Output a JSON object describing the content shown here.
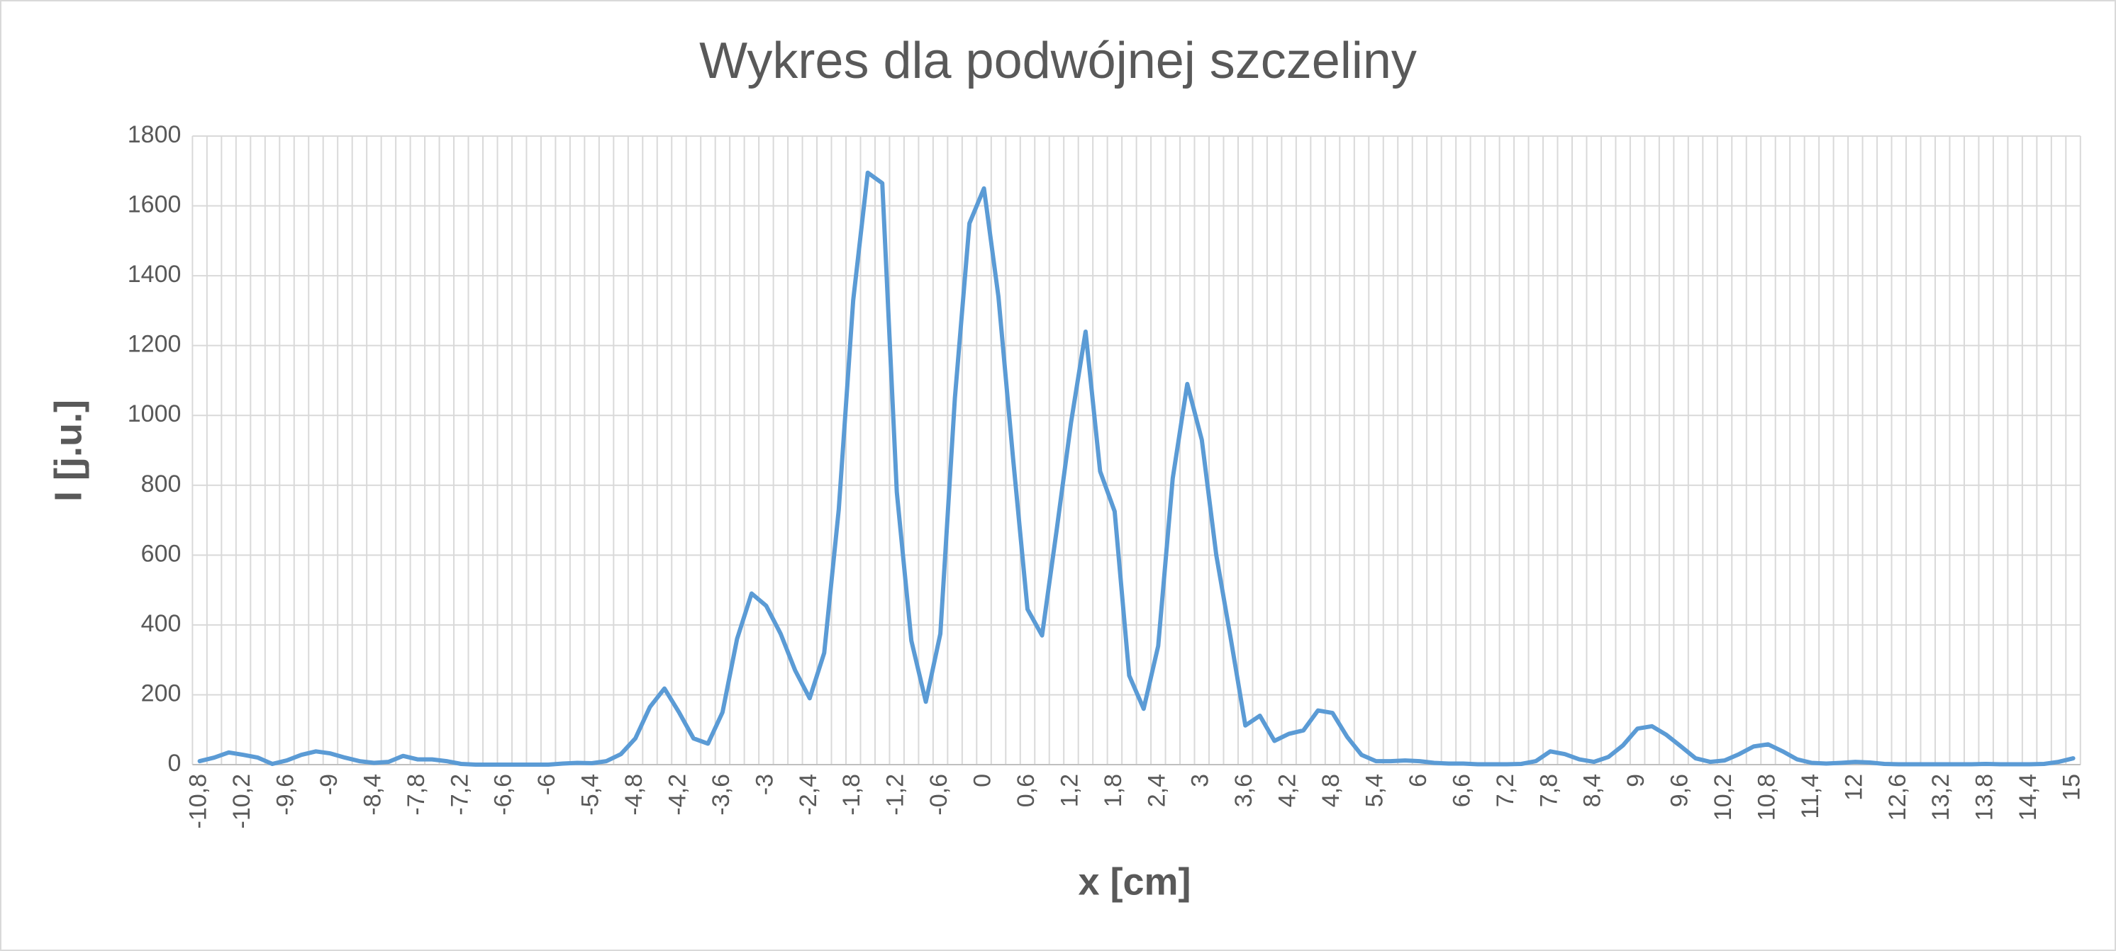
{
  "chart_data": {
    "type": "line",
    "title": "Wykres dla podwójnej szczeliny",
    "x_label": "x [cm]",
    "y_label": "I [j.u.]",
    "color": "#5b9bd5",
    "grid": true,
    "ylim": [
      0,
      1800
    ],
    "yticks": [
      0,
      200,
      400,
      600,
      800,
      1000,
      1200,
      1400,
      1600,
      1800
    ],
    "categories": [
      "-10,8",
      null,
      null,
      "-10,2",
      null,
      null,
      "-9,6",
      null,
      null,
      "-9",
      null,
      null,
      "-8,4",
      null,
      null,
      "-7,8",
      null,
      null,
      "-7,2",
      null,
      null,
      "-6,6",
      null,
      null,
      "-6",
      null,
      null,
      "-5,4",
      null,
      null,
      "-4,8",
      null,
      null,
      "-4,2",
      null,
      null,
      "-3,6",
      null,
      null,
      "-3",
      null,
      null,
      "-2,4",
      null,
      null,
      "-1,8",
      null,
      null,
      "-1,2",
      null,
      null,
      "-0,6",
      null,
      null,
      "0",
      null,
      null,
      "0,6",
      null,
      null,
      "1,2",
      null,
      null,
      "1,8",
      null,
      null,
      "2,4",
      null,
      null,
      "3",
      null,
      null,
      "3,6",
      null,
      null,
      "4,2",
      null,
      null,
      "4,8",
      null,
      null,
      "5,4",
      null,
      null,
      "6",
      null,
      null,
      "6,6",
      null,
      null,
      "7,2",
      null,
      null,
      "7,8",
      null,
      null,
      "8,4",
      null,
      null,
      "9",
      null,
      null,
      "9,6",
      null,
      null,
      "10,2",
      null,
      null,
      "10,8",
      null,
      null,
      "11,4",
      null,
      null,
      "12",
      null,
      null,
      "12,6",
      null,
      null,
      "13,2",
      null,
      null,
      "13,8",
      null,
      null,
      "14,4",
      null,
      null,
      "15"
    ],
    "values": [
      10,
      20,
      35,
      28,
      20,
      2,
      12,
      28,
      38,
      32,
      20,
      10,
      5,
      8,
      25,
      15,
      15,
      10,
      2,
      0,
      0,
      0,
      0,
      0,
      0,
      3,
      5,
      4,
      10,
      30,
      75,
      165,
      218,
      150,
      75,
      60,
      150,
      360,
      490,
      455,
      375,
      270,
      190,
      320,
      730,
      1330,
      1695,
      1665,
      780,
      355,
      180,
      375,
      1050,
      1550,
      1650,
      1340,
      880,
      445,
      370,
      670,
      980,
      1240,
      840,
      725,
      255,
      160,
      340,
      820,
      1090,
      930,
      600,
      360,
      112,
      140,
      68,
      88,
      98,
      155,
      148,
      80,
      28,
      10,
      10,
      12,
      10,
      5,
      3,
      3,
      1,
      1,
      1,
      2,
      10,
      38,
      30,
      15,
      8,
      22,
      55,
      103,
      110,
      85,
      52,
      18,
      8,
      12,
      30,
      52,
      58,
      38,
      15,
      5,
      3,
      5,
      8,
      6,
      2,
      1,
      1,
      1,
      1,
      1,
      1,
      2,
      1,
      1,
      1,
      2,
      8,
      18
    ]
  }
}
